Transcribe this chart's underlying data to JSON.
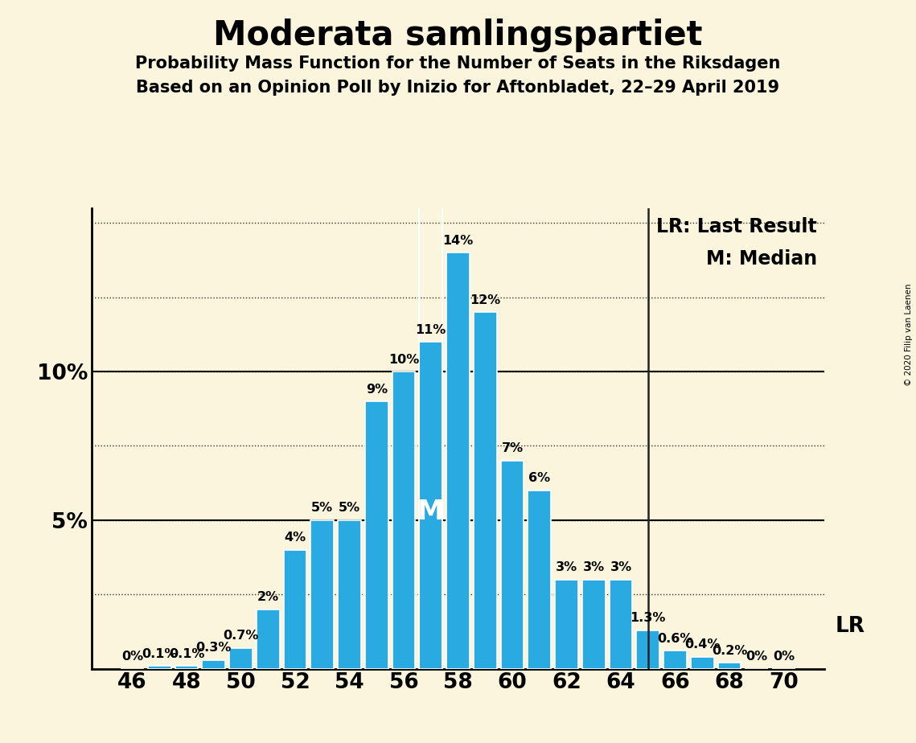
{
  "title": "Moderata samlingspartiet",
  "subtitle1": "Probability Mass Function for the Number of Seats in the Riksdagen",
  "subtitle2": "Based on an Opinion Poll by Inizio for Aftonbladet, 22–29 April 2019",
  "copyright": "© 2020 Filip van Laenen",
  "seats": [
    46,
    47,
    48,
    49,
    50,
    51,
    52,
    53,
    54,
    55,
    56,
    57,
    58,
    59,
    60,
    61,
    62,
    63,
    64,
    65,
    66,
    67,
    68,
    69,
    70
  ],
  "probabilities": [
    0.0,
    0.1,
    0.1,
    0.3,
    0.7,
    2.0,
    4.0,
    5.0,
    5.0,
    9.0,
    10.0,
    11.0,
    14.0,
    12.0,
    7.0,
    6.0,
    3.0,
    3.0,
    3.0,
    1.3,
    0.6,
    0.4,
    0.2,
    0.0,
    0.0
  ],
  "labels": [
    "0%",
    "0.1%",
    "0.1%",
    "0.3%",
    "0.7%",
    "2%",
    "4%",
    "5%",
    "5%",
    "9%",
    "10%",
    "11%",
    "14%",
    "12%",
    "7%",
    "6%",
    "3%",
    "3%",
    "3%",
    "1.3%",
    "0.6%",
    "0.4%",
    "0.2%",
    "0%",
    "0%"
  ],
  "bar_color": "#29ABE2",
  "background_color": "#FAF5DC",
  "median_seat": 57,
  "last_result_seat": 65,
  "median_label": "M",
  "lr_label": "LR",
  "lr_legend": "LR: Last Result",
  "m_legend": "M: Median",
  "xlim": [
    44.5,
    71.5
  ],
  "ylim": [
    0,
    15.5
  ],
  "yticks": [
    0,
    2.5,
    5,
    7.5,
    10,
    12.5,
    15
  ],
  "ytick_display": [
    0,
    5,
    10
  ],
  "ytick_labels_display": [
    "",
    "5%",
    "10%"
  ],
  "xticks": [
    46,
    48,
    50,
    52,
    54,
    56,
    58,
    60,
    62,
    64,
    66,
    68,
    70
  ],
  "title_fontsize": 30,
  "subtitle_fontsize": 15,
  "bar_label_fontsize": 11.5,
  "axis_label_fontsize": 19,
  "legend_fontsize": 17
}
